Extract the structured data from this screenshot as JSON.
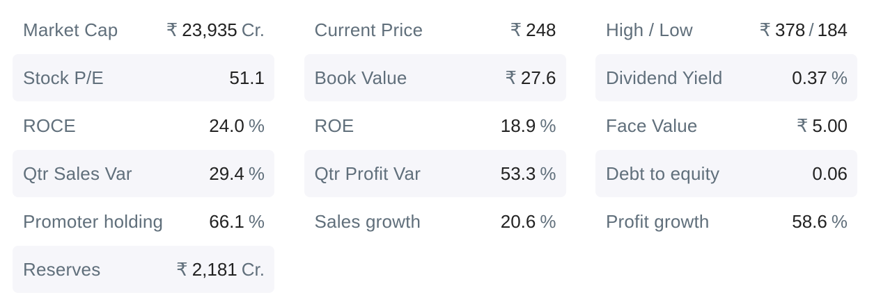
{
  "ratios": [
    {
      "name": "Market Cap",
      "prefix": "₹",
      "value": "23,935",
      "suffix": "Cr."
    },
    {
      "name": "Current Price",
      "prefix": "₹",
      "value": "248",
      "suffix": ""
    },
    {
      "name": "High / Low",
      "prefix": "₹",
      "value": "378",
      "separator": "/",
      "value2": "184",
      "suffix": ""
    },
    {
      "name": "Stock P/E",
      "prefix": "",
      "value": "51.1",
      "suffix": ""
    },
    {
      "name": "Book Value",
      "prefix": "₹",
      "value": "27.6",
      "suffix": ""
    },
    {
      "name": "Dividend Yield",
      "prefix": "",
      "value": "0.37",
      "suffix": "%"
    },
    {
      "name": "ROCE",
      "prefix": "",
      "value": "24.0",
      "suffix": "%"
    },
    {
      "name": "ROE",
      "prefix": "",
      "value": "18.9",
      "suffix": "%"
    },
    {
      "name": "Face Value",
      "prefix": "₹",
      "value": "5.00",
      "suffix": ""
    },
    {
      "name": "Qtr Sales Var",
      "prefix": "",
      "value": "29.4",
      "suffix": "%"
    },
    {
      "name": "Qtr Profit Var",
      "prefix": "",
      "value": "53.3",
      "suffix": "%"
    },
    {
      "name": "Debt to equity",
      "prefix": "",
      "value": "0.06",
      "suffix": ""
    },
    {
      "name": "Promoter holding",
      "prefix": "",
      "value": "66.1",
      "suffix": "%"
    },
    {
      "name": "Sales growth",
      "prefix": "",
      "value": "20.6",
      "suffix": "%"
    },
    {
      "name": "Profit growth",
      "prefix": "",
      "value": "58.6",
      "suffix": "%"
    },
    {
      "name": "Reserves",
      "prefix": "₹",
      "value": "2,181",
      "suffix": "Cr."
    }
  ],
  "colors": {
    "label": "#606f7b",
    "value": "#222222",
    "row_shade": "#f6f6fa"
  }
}
